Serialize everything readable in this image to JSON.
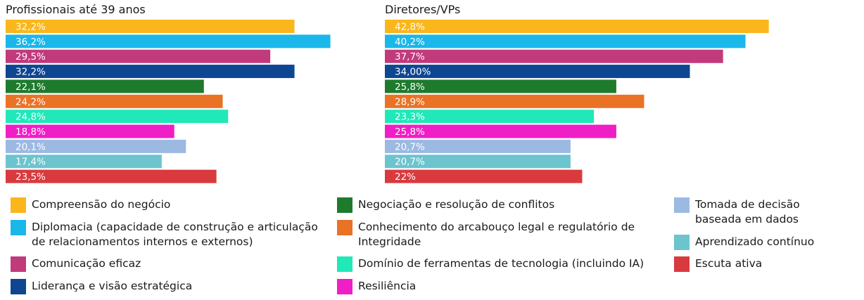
{
  "chart_data": [
    {
      "type": "bar",
      "orientation": "horizontal",
      "title": "Profissionais até 39 anos",
      "categories": [
        "Compreensão do negócio",
        "Diplomacia (capacidade de construção e articulação de relacionamentos internos e externos)",
        "Comunicação eficaz",
        "Liderança e visão estratégica",
        "Negociação e resolução de conflitos",
        "Conhecimento do arcabouço legal e regulatório de Integridade",
        "Domínio de ferramentas de tecnologia (incluindo IA)",
        "Resiliência",
        "Tomada de decisão baseada em dados",
        "Aprendizado contínuo",
        "Escuta ativa"
      ],
      "values": [
        32.2,
        36.2,
        29.5,
        32.2,
        22.1,
        24.2,
        24.8,
        18.8,
        20.1,
        17.4,
        23.5
      ],
      "labels": [
        "32,2%",
        "36,2%",
        "29,5%",
        "32,2%",
        "22,1%",
        "24,2%",
        "24,8%",
        "18,8%",
        "20,1%",
        "17,4%",
        "23,5%"
      ],
      "xlim": [
        0,
        100
      ]
    },
    {
      "type": "bar",
      "orientation": "horizontal",
      "title": "Diretores/VPs",
      "categories": [
        "Compreensão do negócio",
        "Diplomacia (capacidade de construção e articulação de relacionamentos internos e externos)",
        "Comunicação eficaz",
        "Liderança e visão estratégica",
        "Negociação e resolução de conflitos",
        "Conhecimento do arcabouço legal e regulatório de Integridade",
        "Domínio de ferramentas de tecnologia (incluindo IA)",
        "Resiliência",
        "Tomada de decisão baseada em dados",
        "Aprendizado contínuo",
        "Escuta ativa"
      ],
      "values": [
        42.8,
        40.2,
        37.7,
        34.0,
        25.8,
        28.9,
        23.3,
        25.8,
        20.7,
        20.7,
        22.0
      ],
      "labels": [
        "42,8%",
        "40,2%",
        "37,7%",
        "34,00%",
        "25,8%",
        "28,9%",
        "23,3%",
        "25,8%",
        "20,7%",
        "20,7%",
        "22%"
      ],
      "xlim": [
        0,
        100
      ]
    }
  ],
  "colors": [
    "#fbb61b",
    "#1ab7ea",
    "#c13a7c",
    "#0e4692",
    "#1e7b2e",
    "#ea7225",
    "#21e8b8",
    "#f01ec6",
    "#9cb9e2",
    "#6cc4cf",
    "#d93a3e"
  ],
  "legend": [
    {
      "label": "Compreensão do negócio",
      "lines": [
        "Compreensão do negócio"
      ]
    },
    {
      "label": "Diplomacia (capacidade de construção e articulação de relacionamentos internos e externos)",
      "lines": [
        "Diplomacia (capacidade de construção e articulação",
        "de relacionamentos internos e externos)"
      ]
    },
    {
      "label": "Comunicação eficaz",
      "lines": [
        "Comunicação eficaz"
      ]
    },
    {
      "label": "Liderança e visão estratégica",
      "lines": [
        "Liderança e visão estratégica"
      ]
    },
    {
      "label": "Negociação e resolução de conflitos",
      "lines": [
        "Negociação e resolução de conflitos"
      ]
    },
    {
      "label": "Conhecimento do arcabouço legal e regulatório de Integridade",
      "lines": [
        "Conhecimento do arcabouço legal e regulatório de",
        "Integridade"
      ]
    },
    {
      "label": "Domínio de ferramentas de tecnologia (incluindo IA)",
      "lines": [
        "Domínio de ferramentas de tecnologia (incluindo IA)"
      ]
    },
    {
      "label": "Resiliência",
      "lines": [
        "Resiliência"
      ]
    },
    {
      "label": "Tomada de decisão baseada em dados",
      "lines": [
        "Tomada de decisão",
        "baseada em dados"
      ]
    },
    {
      "label": "Aprendizado contínuo",
      "lines": [
        "Aprendizado contínuo"
      ]
    },
    {
      "label": "Escuta ativa",
      "lines": [
        "Escuta ativa"
      ]
    }
  ]
}
